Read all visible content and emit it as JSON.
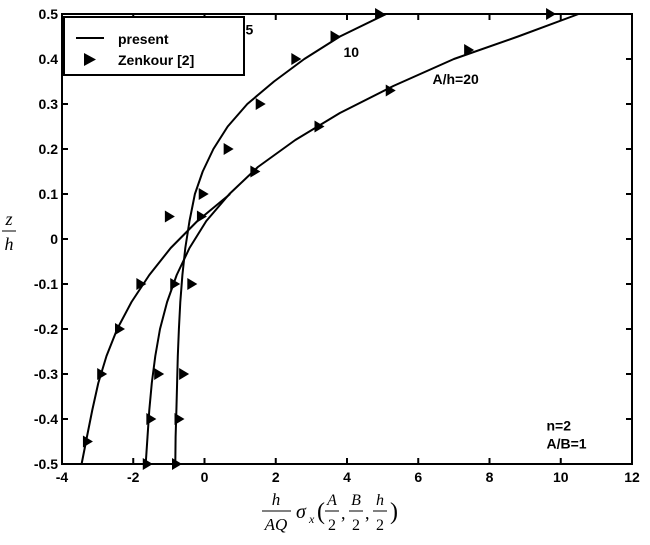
{
  "chart_data": {
    "type": "line",
    "xlim": [
      -4,
      12
    ],
    "ylim": [
      -0.5,
      0.5
    ],
    "xticks": [
      -4,
      -2,
      0,
      2,
      4,
      6,
      8,
      10,
      12
    ],
    "yticks": [
      -0.5,
      -0.4,
      -0.3,
      -0.2,
      -0.1,
      0,
      0.1,
      0.2,
      0.3,
      0.4,
      0.5
    ],
    "xtick_labels": [
      "-4",
      "-2",
      "0",
      "2",
      "4",
      "6",
      "8",
      "10",
      "12"
    ],
    "ytick_labels": [
      "-0.5",
      "-0.4",
      "-0.3",
      "-0.2",
      "-0.1",
      "0",
      "0.1",
      "0.2",
      "0.3",
      "0.4",
      "0.5"
    ],
    "grid": false,
    "legend_position": "top-left",
    "legend": [
      {
        "label": "present",
        "style": "solid-line"
      },
      {
        "label": "Zenkour [2]",
        "style": "right-triangle-marker"
      }
    ],
    "ylabel": {
      "num": "z",
      "den": "h"
    },
    "xlabel": {
      "frac1_num": "h",
      "frac1_den": "AQ",
      "sigma": "σ",
      "sub": "x",
      "args": [
        {
          "num": "A",
          "den": "2"
        },
        {
          "num": "B",
          "den": "2"
        },
        {
          "num": "h",
          "den": "2"
        }
      ]
    },
    "annotations": [
      {
        "text": "5",
        "x": 1.15,
        "y": 0.455
      },
      {
        "text": "10",
        "x": 3.9,
        "y": 0.405
      },
      {
        "text": "A/h=20",
        "x": 6.4,
        "y": 0.345
      },
      {
        "text": "n=2",
        "x": 9.6,
        "y": -0.425
      },
      {
        "text": "A/B=1",
        "x": 9.6,
        "y": -0.465
      }
    ],
    "series": [
      {
        "id": "ah5",
        "x": [
          -0.82,
          -0.81,
          -0.79,
          -0.77,
          -0.75,
          -0.72,
          -0.68,
          -0.62,
          -0.54,
          -0.42,
          -0.27,
          -0.05,
          0.25,
          0.65,
          1.2,
          1.95,
          2.8,
          3.8,
          5.1
        ],
        "y": [
          -0.5,
          -0.44,
          -0.38,
          -0.32,
          -0.26,
          -0.2,
          -0.14,
          -0.08,
          -0.02,
          0.04,
          0.1,
          0.15,
          0.2,
          0.25,
          0.3,
          0.35,
          0.4,
          0.45,
          0.5
        ],
        "markers_x": [
          -0.8,
          -0.73,
          -0.6,
          -0.37,
          -0.05,
          0.65,
          1.55,
          2.55,
          3.65,
          4.9
        ],
        "markers_y": [
          -0.5,
          -0.4,
          -0.3,
          -0.1,
          0.1,
          0.2,
          0.3,
          0.4,
          0.45,
          0.5
        ]
      },
      {
        "id": "ah10",
        "x": [
          -1.65,
          -1.6,
          -1.55,
          -1.48,
          -1.38,
          -1.25,
          -1.05,
          -0.78,
          -0.42,
          0.05,
          0.7,
          1.5,
          2.55,
          3.8,
          5.3,
          7.0,
          8.8,
          10.5
        ],
        "y": [
          -0.5,
          -0.44,
          -0.38,
          -0.32,
          -0.26,
          -0.2,
          -0.14,
          -0.08,
          -0.02,
          0.04,
          0.1,
          0.16,
          0.22,
          0.28,
          0.34,
          0.4,
          0.45,
          0.5
        ],
        "markers_x": [
          -1.62,
          -1.52,
          -1.3,
          -0.85,
          -0.1,
          1.4,
          3.2,
          5.2,
          7.4,
          9.7
        ],
        "markers_y": [
          -0.5,
          -0.4,
          -0.3,
          -0.1,
          0.05,
          0.15,
          0.25,
          0.33,
          0.42,
          0.5
        ]
      },
      {
        "id": "ah20",
        "x": [
          -3.45,
          -3.3,
          -3.15,
          -2.98,
          -2.75,
          -2.45,
          -2.05,
          -1.55,
          -0.95,
          -0.2,
          0.72
        ],
        "y": [
          -0.5,
          -0.44,
          -0.38,
          -0.32,
          -0.26,
          -0.2,
          -0.14,
          -0.08,
          -0.02,
          0.04,
          0.1
        ],
        "markers_x": [
          -3.3,
          -2.9,
          -2.4,
          -1.8,
          -1.0
        ],
        "markers_y": [
          -0.45,
          -0.3,
          -0.2,
          -0.1,
          0.05
        ]
      }
    ]
  }
}
